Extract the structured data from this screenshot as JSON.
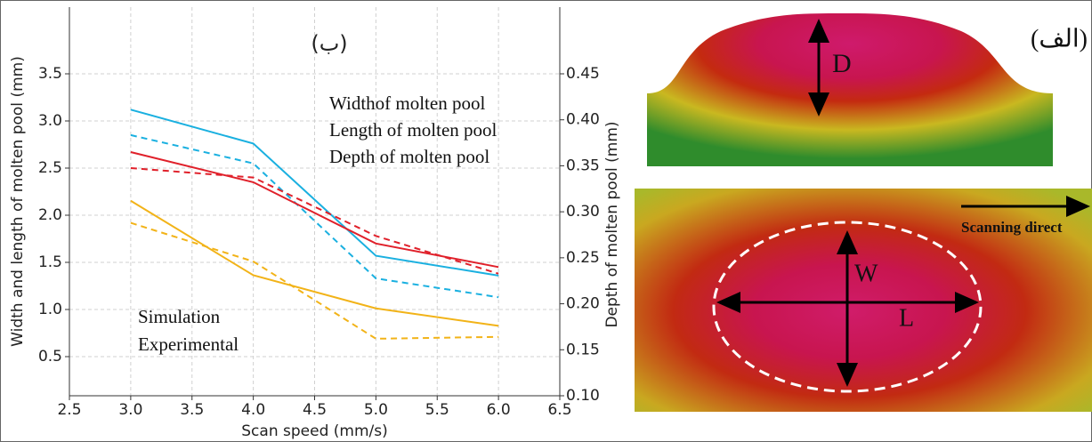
{
  "chart_data": {
    "type": "line",
    "title": "(ب)",
    "x_label": "Scan speed (mm/s)",
    "y_label": "Width and length of molten pool (mm)",
    "y2_label": "Depth of molten pool (mm)",
    "x": [
      3,
      4,
      5,
      6
    ],
    "xlim": [
      2.5,
      6.5
    ],
    "xticks": [
      2.5,
      {
        "value": 3,
        "label": "3.0"
      },
      3.5,
      {
        "value": 4,
        "label": "4.0"
      },
      4.5,
      {
        "value": 5,
        "label": "5.0"
      },
      5.5,
      {
        "value": 6,
        "label": "6.0"
      },
      6.5
    ],
    "ylim": [
      0.085,
      3.5
    ],
    "yticks": [
      0.5,
      {
        "value": 1,
        "label": "1.0"
      },
      1.5,
      {
        "value": 2,
        "label": "2.0"
      },
      2.5,
      {
        "value": 3,
        "label": "3.0"
      },
      3.5
    ],
    "y2lim": [
      0.1,
      0.45
    ],
    "y2ticks": [
      {
        "value": 0.1,
        "label": "0.10"
      },
      0.15,
      {
        "value": 0.2,
        "label": "0.20"
      },
      0.25,
      {
        "value": 0.3,
        "label": "0.30"
      },
      0.35,
      {
        "value": 0.4,
        "label": "0.40"
      },
      0.45
    ],
    "grid": true,
    "styles": [
      {
        "name": "Simulation",
        "dash": "none"
      },
      {
        "name": "Experimental",
        "dash": "7 5"
      }
    ],
    "series": [
      {
        "name": "Widthof molten pool",
        "color": "#1ab0e0",
        "values": [
          3.12,
          2.76,
          1.57,
          1.36
        ],
        "experimental": [
          2.85,
          2.55,
          1.33,
          1.13
        ]
      },
      {
        "name": "Length of molten pool",
        "color": "#e0202a",
        "values": [
          2.67,
          2.35,
          1.7,
          1.45
        ],
        "experimental": [
          2.5,
          2.4,
          1.78,
          1.38
        ]
      },
      {
        "name": "Depth of molten pool",
        "color": "#f2b318",
        "axis": "y2",
        "values": [
          0.312,
          0.231,
          0.195,
          0.176
        ],
        "experimental": [
          0.288,
          0.246,
          0.162,
          0.164
        ]
      }
    ]
  },
  "figure": {
    "label": "(الف)",
    "depth": "D",
    "width": "W",
    "length": "L",
    "direction": "Scanning direct"
  }
}
